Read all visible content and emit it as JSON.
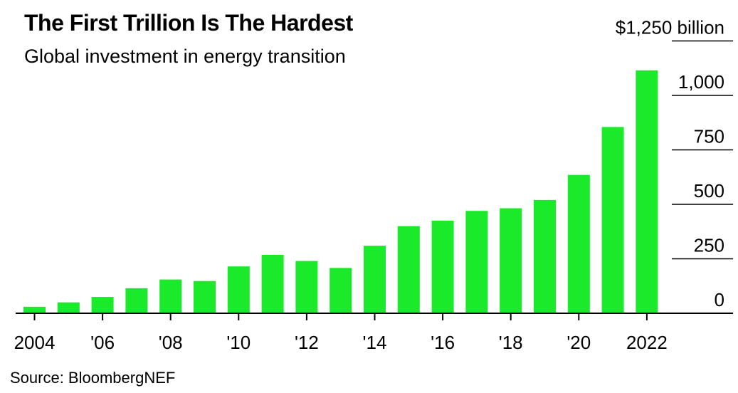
{
  "header": {
    "title": "The First Trillion Is The Hardest",
    "subtitle": "Global investment in energy transition"
  },
  "footer": {
    "source": "Source: BloombergNEF"
  },
  "colors": {
    "bar": "#1aea2a",
    "axis": "#000000",
    "grid": "#000000"
  },
  "chart_data": {
    "type": "bar",
    "title": "The First Trillion Is The Hardest",
    "subtitle": "Global investment in energy transition",
    "unit_label": "$1,250 billion",
    "categories": [
      "2004",
      "2005",
      "2006",
      "2007",
      "2008",
      "2009",
      "2010",
      "2011",
      "2012",
      "2013",
      "2014",
      "2015",
      "2016",
      "2017",
      "2018",
      "2019",
      "2020",
      "2021",
      "2022"
    ],
    "values": [
      30,
      50,
      75,
      115,
      155,
      148,
      215,
      268,
      240,
      208,
      310,
      400,
      425,
      470,
      482,
      520,
      635,
      855,
      1115
    ],
    "x_tick_labels": [
      "2004",
      "'06",
      "'08",
      "'10",
      "'12",
      "'14",
      "'16",
      "'18",
      "'20",
      "2022"
    ],
    "y_ticks": [
      {
        "value": 0,
        "label": "0"
      },
      {
        "value": 250,
        "label": "250"
      },
      {
        "value": 500,
        "label": "500"
      },
      {
        "value": 750,
        "label": "750"
      },
      {
        "value": 1000,
        "label": "1,000"
      },
      {
        "value": 1250,
        "label": "$1,250 billion"
      }
    ],
    "ylim": [
      0,
      1250
    ],
    "grid": true,
    "y_axis_position": "right"
  }
}
